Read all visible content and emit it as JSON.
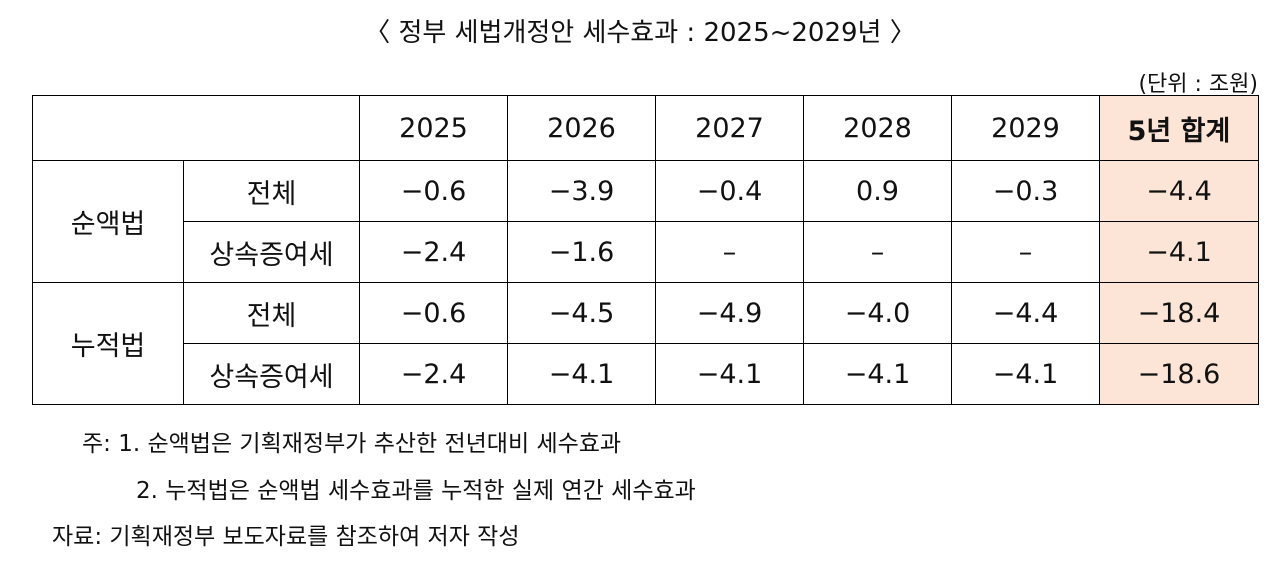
{
  "title": "〈 정부 세법개정안 세수효과 : 2025~2029년 〉",
  "unit": "(단위 : 조원)",
  "table": {
    "header": [
      "2025",
      "2026",
      "2027",
      "2028",
      "2029",
      "5년 합계"
    ],
    "groups": [
      {
        "name": "순액법",
        "rows": [
          {
            "label": "전체",
            "values": [
              "−0.6",
              "−3.9",
              "−0.4",
              "0.9",
              "−0.3",
              "−4.4"
            ]
          },
          {
            "label": "상속증여세",
            "values": [
              "−2.4",
              "−1.6",
              "–",
              "–",
              "–",
              "−4.1"
            ]
          }
        ]
      },
      {
        "name": "누적법",
        "rows": [
          {
            "label": "전체",
            "values": [
              "−0.6",
              "−4.5",
              "−4.9",
              "−4.0",
              "−4.4",
              "−18.4"
            ]
          },
          {
            "label": "상속증여세",
            "values": [
              "−2.4",
              "−4.1",
              "−4.1",
              "−4.1",
              "−4.1",
              "−18.6"
            ]
          }
        ]
      }
    ]
  },
  "notes": [
    "주: 1. 순액법은 기획재정부가 추산한 전년대비 세수효과",
    "2. 누적법은 순액법 세수효과를 누적한 실제 연간 세수효과"
  ],
  "source": "자료: 기획재정부 보도자료를 참조하여 저자 작성"
}
